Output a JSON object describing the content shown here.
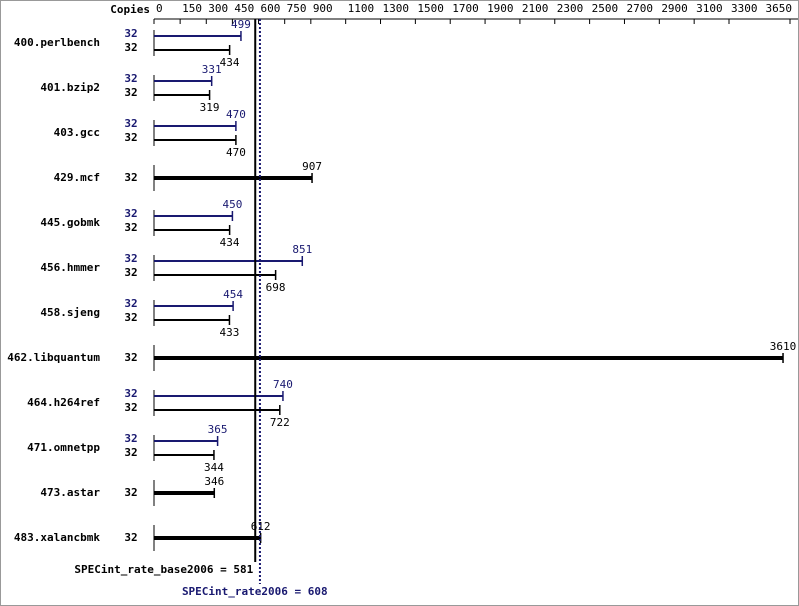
{
  "chart_data": {
    "type": "bar",
    "orientation": "horizontal",
    "x_label": "Copies",
    "xlim": [
      0,
      3650
    ],
    "xticks": [
      0,
      150,
      300,
      450,
      600,
      750,
      900,
      1100,
      1300,
      1500,
      1700,
      1900,
      2100,
      2300,
      2500,
      2700,
      2900,
      3100,
      3300,
      3650
    ],
    "categories": [
      "400.perlbench",
      "401.bzip2",
      "403.gcc",
      "429.mcf",
      "445.gobmk",
      "456.hmmer",
      "458.sjeng",
      "462.libquantum",
      "464.h264ref",
      "471.omnetpp",
      "473.astar",
      "483.xalancbmk"
    ],
    "series": [
      {
        "color": "#191970",
        "copies": [
          32,
          32,
          32,
          null,
          32,
          32,
          32,
          null,
          32,
          32,
          null,
          null
        ],
        "values": [
          499,
          331,
          470,
          null,
          450,
          851,
          454,
          null,
          740,
          365,
          null,
          null
        ]
      },
      {
        "color": "#000000",
        "copies": [
          32,
          32,
          32,
          32,
          32,
          32,
          32,
          32,
          32,
          32,
          32,
          32
        ],
        "values": [
          434,
          319,
          470,
          907,
          434,
          698,
          433,
          3610,
          722,
          344,
          346,
          612
        ]
      }
    ],
    "reference_lines": [
      {
        "text": "SPECint_rate_base2006 = 581",
        "value": 581,
        "color": "#000000",
        "style": "solid"
      },
      {
        "text": "SPECint_rate2006 = 608",
        "value": 608,
        "color": "#191970",
        "style": "dotted"
      }
    ]
  }
}
